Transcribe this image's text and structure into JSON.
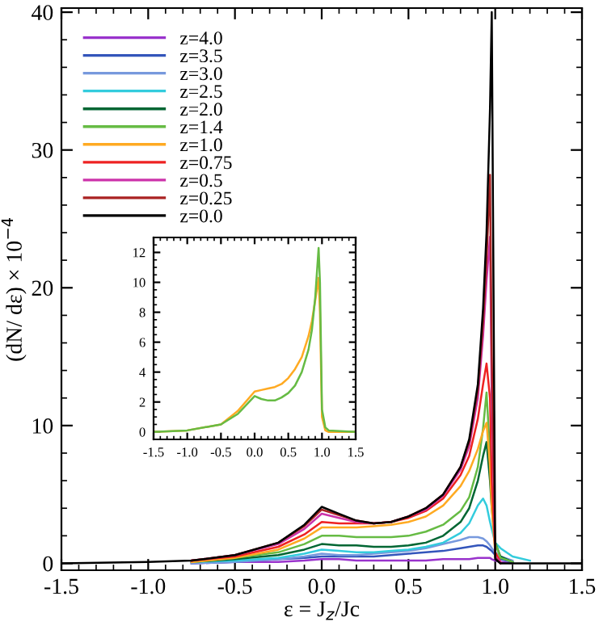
{
  "chart_data": [
    {
      "type": "line",
      "xlabel": "ε = J$_{z}$/Jc",
      "ylabel": "(dN/ dε) × 10$^{−4}$",
      "legend": "top left",
      "xlim": [
        -1.5,
        1.5
      ],
      "ylim": [
        -0.5,
        40.3
      ],
      "xticks": [
        {
          "value": -1.5,
          "label": "-1.5"
        },
        {
          "value": -1.0,
          "label": "-1.0"
        },
        {
          "value": -0.5,
          "label": "-0.5"
        },
        {
          "value": 0.0,
          "label": "0.0"
        },
        {
          "value": 0.5,
          "label": "0.5"
        },
        {
          "value": 1.0,
          "label": "1.0"
        },
        {
          "value": 1.5,
          "label": "1.5"
        }
      ],
      "yticks": [
        0,
        10,
        20,
        30,
        40
      ],
      "x": [
        -1.5,
        -1.0,
        -0.75,
        -0.5,
        -0.25,
        -0.1,
        0.0,
        0.1,
        0.2,
        0.3,
        0.4,
        0.5,
        0.6,
        0.7,
        0.8,
        0.85,
        0.9,
        0.93,
        0.95,
        0.97,
        0.98,
        1.0,
        1.03,
        1.1,
        1.2,
        1.5
      ],
      "series": [
        {
          "name": "z=4.0",
          "color": "#9933cc",
          "values": [
            null,
            null,
            0.0,
            0.1,
            0.1,
            0.2,
            0.3,
            0.3,
            0.2,
            0.2,
            0.2,
            0.2,
            0.2,
            0.3,
            0.3,
            0.3,
            0.4,
            0.4,
            0.4,
            0.4,
            0.3,
            0.2,
            0.1,
            0.0,
            null,
            null
          ]
        },
        {
          "name": "z=3.5",
          "color": "#3355bb",
          "values": [
            null,
            null,
            0.0,
            0.1,
            0.3,
            0.4,
            0.5,
            0.5,
            0.5,
            0.5,
            0.6,
            0.7,
            0.8,
            0.9,
            1.1,
            1.2,
            1.3,
            1.3,
            1.2,
            1.0,
            0.9,
            0.6,
            0.3,
            0.1,
            null,
            null
          ]
        },
        {
          "name": "z=3.0",
          "color": "#7799dd",
          "values": [
            null,
            null,
            0.0,
            0.1,
            0.3,
            0.5,
            0.7,
            0.6,
            0.6,
            0.7,
            0.8,
            0.9,
            1.1,
            1.4,
            1.7,
            1.9,
            1.9,
            1.8,
            1.6,
            1.3,
            1.1,
            0.8,
            0.5,
            0.2,
            null,
            null
          ]
        },
        {
          "name": "z=2.5",
          "color": "#33ccdd",
          "values": [
            null,
            null,
            0.1,
            0.2,
            0.4,
            0.7,
            1.0,
            0.9,
            0.8,
            0.8,
            0.9,
            1.0,
            1.2,
            1.5,
            2.2,
            2.9,
            4.2,
            4.7,
            4.2,
            3.0,
            2.5,
            1.5,
            1.1,
            0.5,
            0.2,
            null
          ]
        },
        {
          "name": "z=2.0",
          "color": "#006633",
          "values": [
            null,
            null,
            0.1,
            0.3,
            0.6,
            1.0,
            1.4,
            1.3,
            1.3,
            1.2,
            1.2,
            1.3,
            1.5,
            2.0,
            3.0,
            4.0,
            6.0,
            7.8,
            8.8,
            6.0,
            4.0,
            1.5,
            0.5,
            0.1,
            null,
            null
          ]
        },
        {
          "name": "z=1.4",
          "color": "#66bb44",
          "values": [
            null,
            null,
            0.1,
            0.4,
            0.8,
            1.4,
            2.0,
            2.0,
            1.9,
            1.9,
            1.9,
            2.0,
            2.3,
            2.8,
            3.8,
            4.8,
            7.0,
            9.8,
            12.4,
            8.0,
            5.0,
            1.5,
            0.4,
            0.1,
            null,
            null
          ]
        },
        {
          "name": "z=1.0",
          "color": "#ffaa22",
          "values": [
            null,
            null,
            0.1,
            0.4,
            1.0,
            1.8,
            2.6,
            2.6,
            2.6,
            2.7,
            2.8,
            3.0,
            3.4,
            4.2,
            5.6,
            6.7,
            8.3,
            9.6,
            10.2,
            7.0,
            4.0,
            0.8,
            0.1,
            null,
            null,
            null
          ]
        },
        {
          "name": "z=0.75",
          "color": "#ee2222",
          "values": [
            null,
            null,
            0.2,
            0.5,
            1.2,
            2.1,
            3.0,
            2.9,
            2.9,
            2.9,
            3.0,
            3.3,
            3.8,
            4.7,
            6.4,
            7.8,
            10.5,
            13.0,
            14.5,
            12.0,
            6.0,
            0.8,
            0.1,
            null,
            null,
            null
          ]
        },
        {
          "name": "z=0.5",
          "color": "#cc33aa",
          "values": [
            null,
            null,
            0.2,
            0.6,
            1.4,
            2.5,
            3.6,
            3.3,
            3.0,
            2.9,
            3.0,
            3.4,
            3.9,
            4.9,
            6.8,
            8.5,
            12.0,
            16.5,
            20.5,
            23.7,
            12.0,
            0.5,
            0.1,
            null,
            null,
            null
          ]
        },
        {
          "name": "z=0.25",
          "color": "#aa2222",
          "values": [
            null,
            null,
            0.2,
            0.6,
            1.5,
            2.7,
            3.9,
            3.5,
            3.1,
            2.9,
            3.0,
            3.4,
            4.0,
            5.0,
            7.0,
            8.8,
            12.6,
            17.5,
            22.0,
            28.2,
            15.0,
            0.4,
            0.0,
            null,
            null,
            null
          ]
        },
        {
          "name": "z=0.0",
          "color": "#000000",
          "values": [
            0.0,
            0.1,
            0.2,
            0.6,
            1.5,
            2.8,
            4.1,
            3.6,
            3.1,
            2.9,
            3.0,
            3.4,
            4.0,
            5.0,
            7.0,
            9.0,
            13.0,
            18.5,
            24.0,
            33.0,
            40.0,
            0.3,
            0.0,
            0.0,
            0.0,
            0.0
          ]
        }
      ]
    },
    {
      "type": "line",
      "xlim": [
        -1.5,
        1.5
      ],
      "ylim": [
        -0.5,
        13
      ],
      "xticks": [
        {
          "value": -1.5,
          "label": "-1.5"
        },
        {
          "value": -1.0,
          "label": "-1.0"
        },
        {
          "value": -0.5,
          "label": "-0.5"
        },
        {
          "value": 0.0,
          "label": "0.0"
        },
        {
          "value": 0.5,
          "label": "0.5"
        },
        {
          "value": 1.0,
          "label": "1.0"
        },
        {
          "value": 1.5,
          "label": "1.5"
        }
      ],
      "yticks": [
        0,
        2,
        4,
        6,
        8,
        10,
        12
      ],
      "x": [
        -1.5,
        -1.0,
        -0.5,
        -0.25,
        0.0,
        0.1,
        0.2,
        0.3,
        0.4,
        0.5,
        0.6,
        0.7,
        0.8,
        0.85,
        0.9,
        0.95,
        0.97,
        1.0,
        1.05,
        1.1,
        1.5
      ],
      "series": [
        {
          "color": "#ffaa22",
          "values": [
            0.0,
            0.1,
            0.5,
            1.4,
            2.7,
            2.8,
            2.9,
            3.0,
            3.2,
            3.6,
            4.2,
            5.0,
            6.4,
            7.4,
            8.8,
            10.3,
            8.0,
            1.0,
            0.1,
            0.0,
            0.0
          ]
        },
        {
          "color": "#66bb44",
          "values": [
            0.0,
            0.1,
            0.5,
            1.2,
            2.4,
            2.2,
            2.1,
            2.1,
            2.3,
            2.6,
            3.1,
            4.0,
            5.5,
            6.8,
            9.0,
            12.3,
            10.0,
            1.5,
            0.3,
            0.1,
            0.0
          ]
        }
      ]
    }
  ]
}
